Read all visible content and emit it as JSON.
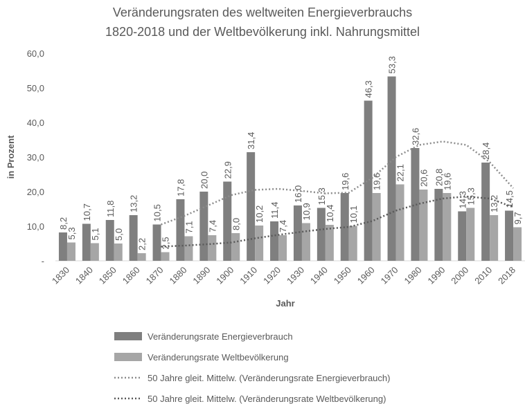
{
  "chart_data": {
    "type": "bar",
    "title": [
      "Veränderungsraten des weltweiten Energieverbrauchs",
      "1820-2018 und der Weltbevölkerung inkl. Nahrungsmittel"
    ],
    "xlabel": "Jahr",
    "ylabel": "in Prozent",
    "categories": [
      "1830",
      "1840",
      "1850",
      "1860",
      "1870",
      "1880",
      "1890",
      "1900",
      "1910",
      "1920",
      "1930",
      "1940",
      "1950",
      "1960",
      "1970",
      "1980",
      "1990",
      "2000",
      "2010",
      "2018"
    ],
    "ylim": [
      0,
      60
    ],
    "yticks": [
      {
        "value": 0,
        "label": "-"
      },
      {
        "value": 10,
        "label": "10,0"
      },
      {
        "value": 20,
        "label": "20,0"
      },
      {
        "value": 30,
        "label": "30,0"
      },
      {
        "value": 40,
        "label": "40,0"
      },
      {
        "value": 50,
        "label": "50,0"
      },
      {
        "value": 60,
        "label": "60,0"
      }
    ],
    "series": [
      {
        "name": "Veränderungsrate Energieverbrauch",
        "type": "bar",
        "color": "#7f7f7f",
        "values": [
          8.2,
          10.7,
          11.8,
          13.2,
          10.5,
          17.8,
          20.0,
          22.9,
          31.4,
          11.4,
          16.0,
          15.3,
          19.6,
          46.3,
          53.3,
          32.6,
          20.8,
          14.3,
          28.4,
          14.5
        ],
        "value_labels": [
          "8,2",
          "10,7",
          "11,8",
          "13,2",
          "10,5",
          "17,8",
          "20,0",
          "22,9",
          "31,4",
          "11,4",
          "16,0",
          "15,3",
          "19,6",
          "46,3",
          "53,3",
          "32,6",
          "20,8",
          "14,3",
          "28,4",
          "14,5"
        ]
      },
      {
        "name": "Veränderungsrate Weltbevölkerung",
        "type": "bar",
        "color": "#a6a6a6",
        "values": [
          5.3,
          5.1,
          5.0,
          2.2,
          2.5,
          7.1,
          7.4,
          8.0,
          10.2,
          7.4,
          10.9,
          10.4,
          10.1,
          19.6,
          22.1,
          20.6,
          19.6,
          15.3,
          13.2,
          9.7
        ],
        "value_labels": [
          "5,3",
          "5,1",
          "5,0",
          "2,2",
          "2,5",
          "7,1",
          "7,4",
          "8,0",
          "10,2",
          "7,4",
          "10,9",
          "10,4",
          "10,1",
          "19,6",
          "22,1",
          "20,6",
          "19,6",
          "15,3",
          "13,2",
          "9,7"
        ]
      },
      {
        "name": "50 Jahre gleit. Mittelw. (Veränderungsrate Energieverbrauch)",
        "type": "line",
        "color": "#8c8c8c",
        "values": [
          null,
          null,
          null,
          null,
          10.5,
          13,
          16,
          19,
          20.5,
          20.8,
          20.2,
          19.5,
          19.7,
          24,
          30,
          33.5,
          34.5,
          33.5,
          28.5,
          21
        ]
      },
      {
        "name": "50 Jahre gleit. Mittelw. (Veränderungsrate Weltbevölkerung)",
        "type": "line",
        "color": "#595959",
        "values": [
          null,
          null,
          null,
          null,
          4.1,
          4.4,
          4.8,
          5.3,
          6.5,
          7.5,
          8.4,
          9.2,
          9.8,
          11.5,
          14.5,
          16.5,
          18,
          18.6,
          18,
          15.5
        ]
      }
    ]
  }
}
